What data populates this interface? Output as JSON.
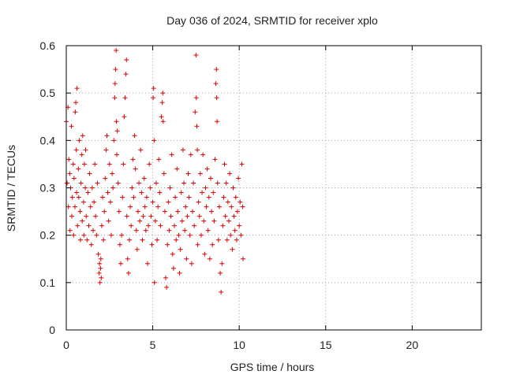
{
  "chart_data": {
    "type": "scatter",
    "title": "Day 036 of 2024, SRMTID for receiver xplo",
    "xlabel": "GPS time / hours",
    "ylabel": "SRMTID / TECUs",
    "xlim": [
      0,
      24
    ],
    "ylim": [
      0,
      0.6
    ],
    "xticks": [
      0,
      5,
      10,
      15,
      20
    ],
    "yticks": [
      0,
      0.1,
      0.2,
      0.3,
      0.4,
      0.5,
      0.6
    ],
    "xtick_labels": [
      "0",
      "5",
      "10",
      "15",
      "20"
    ],
    "ytick_labels": [
      "0",
      "0.1",
      "0.2",
      "0.3",
      "0.4",
      "0.5",
      "0.6"
    ],
    "grid": true,
    "marker": "plus",
    "color": "#e00000",
    "series": [
      {
        "name": "SRMTID",
        "points": [
          [
            0.0,
            0.44
          ],
          [
            0.05,
            0.31
          ],
          [
            0.1,
            0.47
          ],
          [
            0.12,
            0.26
          ],
          [
            0.15,
            0.36
          ],
          [
            0.2,
            0.33
          ],
          [
            0.22,
            0.21
          ],
          [
            0.25,
            0.3
          ],
          [
            0.3,
            0.43
          ],
          [
            0.32,
            0.24
          ],
          [
            0.35,
            0.28
          ],
          [
            0.4,
            0.35
          ],
          [
            0.42,
            0.2
          ],
          [
            0.45,
            0.32
          ],
          [
            0.5,
            0.26
          ],
          [
            0.52,
            0.46
          ],
          [
            0.55,
            0.48
          ],
          [
            0.58,
            0.38
          ],
          [
            0.6,
            0.29
          ],
          [
            0.62,
            0.51
          ],
          [
            0.65,
            0.22
          ],
          [
            0.7,
            0.34
          ],
          [
            0.72,
            0.28
          ],
          [
            0.75,
            0.4
          ],
          [
            0.8,
            0.25
          ],
          [
            0.82,
            0.19
          ],
          [
            0.85,
            0.31
          ],
          [
            0.9,
            0.37
          ],
          [
            0.92,
            0.23
          ],
          [
            0.95,
            0.41
          ],
          [
            1.0,
            0.27
          ],
          [
            1.02,
            0.2
          ],
          [
            1.05,
            0.35
          ],
          [
            1.1,
            0.3
          ],
          [
            1.12,
            0.38
          ],
          [
            1.15,
            0.24
          ],
          [
            1.2,
            0.19
          ],
          [
            1.25,
            0.29
          ],
          [
            1.3,
            0.22
          ],
          [
            1.35,
            0.33
          ],
          [
            1.4,
            0.26
          ],
          [
            1.45,
            0.18
          ],
          [
            1.5,
            0.3
          ],
          [
            1.55,
            0.21
          ],
          [
            1.6,
            0.27
          ],
          [
            1.65,
            0.35
          ],
          [
            1.7,
            0.24
          ],
          [
            1.75,
            0.2
          ],
          [
            1.8,
            0.31
          ],
          [
            1.85,
            0.16
          ],
          [
            1.9,
            0.12
          ],
          [
            1.92,
            0.14
          ],
          [
            1.95,
            0.1
          ],
          [
            1.98,
            0.13
          ],
          [
            2.0,
            0.15
          ],
          [
            2.02,
            0.11
          ],
          [
            2.05,
            0.22
          ],
          [
            2.1,
            0.28
          ],
          [
            2.15,
            0.19
          ],
          [
            2.2,
            0.25
          ],
          [
            2.25,
            0.32
          ],
          [
            2.3,
            0.38
          ],
          [
            2.35,
            0.41
          ],
          [
            2.4,
            0.29
          ],
          [
            2.45,
            0.23
          ],
          [
            2.5,
            0.35
          ],
          [
            2.55,
            0.27
          ],
          [
            2.6,
            0.2
          ],
          [
            2.65,
            0.33
          ],
          [
            2.7,
            0.3
          ],
          [
            2.75,
            0.4
          ],
          [
            2.8,
            0.49
          ],
          [
            2.82,
            0.52
          ],
          [
            2.85,
            0.55
          ],
          [
            2.88,
            0.59
          ],
          [
            2.9,
            0.44
          ],
          [
            2.92,
            0.37
          ],
          [
            2.95,
            0.42
          ],
          [
            3.0,
            0.31
          ],
          [
            3.05,
            0.25
          ],
          [
            3.1,
            0.18
          ],
          [
            3.15,
            0.14
          ],
          [
            3.2,
            0.2
          ],
          [
            3.25,
            0.28
          ],
          [
            3.3,
            0.35
          ],
          [
            3.35,
            0.45
          ],
          [
            3.4,
            0.49
          ],
          [
            3.45,
            0.54
          ],
          [
            3.48,
            0.57
          ],
          [
            3.5,
            0.24
          ],
          [
            3.55,
            0.15
          ],
          [
            3.6,
            0.12
          ],
          [
            3.65,
            0.19
          ],
          [
            3.7,
            0.26
          ],
          [
            3.75,
            0.22
          ],
          [
            3.8,
            0.3
          ],
          [
            3.85,
            0.36
          ],
          [
            3.9,
            0.28
          ],
          [
            3.95,
            0.41
          ],
          [
            4.0,
            0.34
          ],
          [
            4.05,
            0.21
          ],
          [
            4.1,
            0.17
          ],
          [
            4.15,
            0.25
          ],
          [
            4.2,
            0.31
          ],
          [
            4.25,
            0.23
          ],
          [
            4.3,
            0.38
          ],
          [
            4.35,
            0.29
          ],
          [
            4.4,
            0.19
          ],
          [
            4.45,
            0.24
          ],
          [
            4.5,
            0.32
          ],
          [
            4.55,
            0.26
          ],
          [
            4.6,
            0.21
          ],
          [
            4.65,
            0.28
          ],
          [
            4.7,
            0.14
          ],
          [
            4.75,
            0.22
          ],
          [
            4.8,
            0.35
          ],
          [
            4.85,
            0.3
          ],
          [
            4.9,
            0.24
          ],
          [
            4.95,
            0.18
          ],
          [
            5.0,
            0.27
          ],
          [
            5.02,
            0.49
          ],
          [
            5.05,
            0.51
          ],
          [
            5.08,
            0.4
          ],
          [
            5.1,
            0.1
          ],
          [
            5.15,
            0.23
          ],
          [
            5.2,
            0.31
          ],
          [
            5.25,
            0.19
          ],
          [
            5.3,
            0.26
          ],
          [
            5.35,
            0.36
          ],
          [
            5.4,
            0.29
          ],
          [
            5.45,
            0.22
          ],
          [
            5.5,
            0.45
          ],
          [
            5.55,
            0.48
          ],
          [
            5.58,
            0.5
          ],
          [
            5.6,
            0.44
          ],
          [
            5.65,
            0.33
          ],
          [
            5.7,
            0.25
          ],
          [
            5.75,
            0.11
          ],
          [
            5.8,
            0.09
          ],
          [
            5.85,
            0.18
          ],
          [
            5.9,
            0.27
          ],
          [
            5.95,
            0.21
          ],
          [
            6.0,
            0.3
          ],
          [
            6.05,
            0.24
          ],
          [
            6.1,
            0.37
          ],
          [
            6.15,
            0.16
          ],
          [
            6.2,
            0.13
          ],
          [
            6.25,
            0.22
          ],
          [
            6.3,
            0.28
          ],
          [
            6.35,
            0.19
          ],
          [
            6.4,
            0.34
          ],
          [
            6.45,
            0.25
          ],
          [
            6.5,
            0.2
          ],
          [
            6.55,
            0.12
          ],
          [
            6.6,
            0.17
          ],
          [
            6.65,
            0.29
          ],
          [
            6.7,
            0.23
          ],
          [
            6.75,
            0.38
          ],
          [
            6.8,
            0.31
          ],
          [
            6.85,
            0.21
          ],
          [
            6.9,
            0.26
          ],
          [
            6.95,
            0.15
          ],
          [
            7.0,
            0.24
          ],
          [
            7.05,
            0.33
          ],
          [
            7.1,
            0.28
          ],
          [
            7.15,
            0.2
          ],
          [
            7.2,
            0.37
          ],
          [
            7.25,
            0.14
          ],
          [
            7.3,
            0.25
          ],
          [
            7.35,
            0.31
          ],
          [
            7.4,
            0.22
          ],
          [
            7.45,
            0.46
          ],
          [
            7.5,
            0.58
          ],
          [
            7.52,
            0.49
          ],
          [
            7.55,
            0.43
          ],
          [
            7.58,
            0.38
          ],
          [
            7.6,
            0.18
          ],
          [
            7.65,
            0.27
          ],
          [
            7.7,
            0.24
          ],
          [
            7.75,
            0.33
          ],
          [
            7.8,
            0.2
          ],
          [
            7.85,
            0.29
          ],
          [
            7.9,
            0.37
          ],
          [
            7.95,
            0.23
          ],
          [
            8.0,
            0.16
          ],
          [
            8.05,
            0.3
          ],
          [
            8.1,
            0.26
          ],
          [
            8.15,
            0.34
          ],
          [
            8.2,
            0.21
          ],
          [
            8.25,
            0.28
          ],
          [
            8.3,
            0.15
          ],
          [
            8.35,
            0.32
          ],
          [
            8.4,
            0.25
          ],
          [
            8.45,
            0.18
          ],
          [
            8.5,
            0.29
          ],
          [
            8.55,
            0.23
          ],
          [
            8.6,
            0.36
          ],
          [
            8.65,
            0.52
          ],
          [
            8.68,
            0.55
          ],
          [
            8.7,
            0.49
          ],
          [
            8.72,
            0.44
          ],
          [
            8.75,
            0.31
          ],
          [
            8.8,
            0.19
          ],
          [
            8.85,
            0.26
          ],
          [
            8.9,
            0.12
          ],
          [
            8.95,
            0.08
          ],
          [
            9.0,
            0.14
          ],
          [
            9.05,
            0.22
          ],
          [
            9.1,
            0.28
          ],
          [
            9.15,
            0.35
          ],
          [
            9.2,
            0.24
          ],
          [
            9.25,
            0.31
          ],
          [
            9.3,
            0.19
          ],
          [
            9.35,
            0.27
          ],
          [
            9.4,
            0.23
          ],
          [
            9.45,
            0.33
          ],
          [
            9.5,
            0.2
          ],
          [
            9.55,
            0.26
          ],
          [
            9.6,
            0.17
          ],
          [
            9.65,
            0.3
          ],
          [
            9.7,
            0.24
          ],
          [
            9.75,
            0.21
          ],
          [
            9.8,
            0.28
          ],
          [
            9.85,
            0.19
          ],
          [
            9.9,
            0.25
          ],
          [
            9.95,
            0.32
          ],
          [
            10.0,
            0.22
          ],
          [
            10.05,
            0.27
          ],
          [
            10.1,
            0.2
          ],
          [
            10.15,
            0.35
          ],
          [
            10.2,
            0.26
          ],
          [
            10.22,
            0.15
          ]
        ]
      }
    ]
  }
}
